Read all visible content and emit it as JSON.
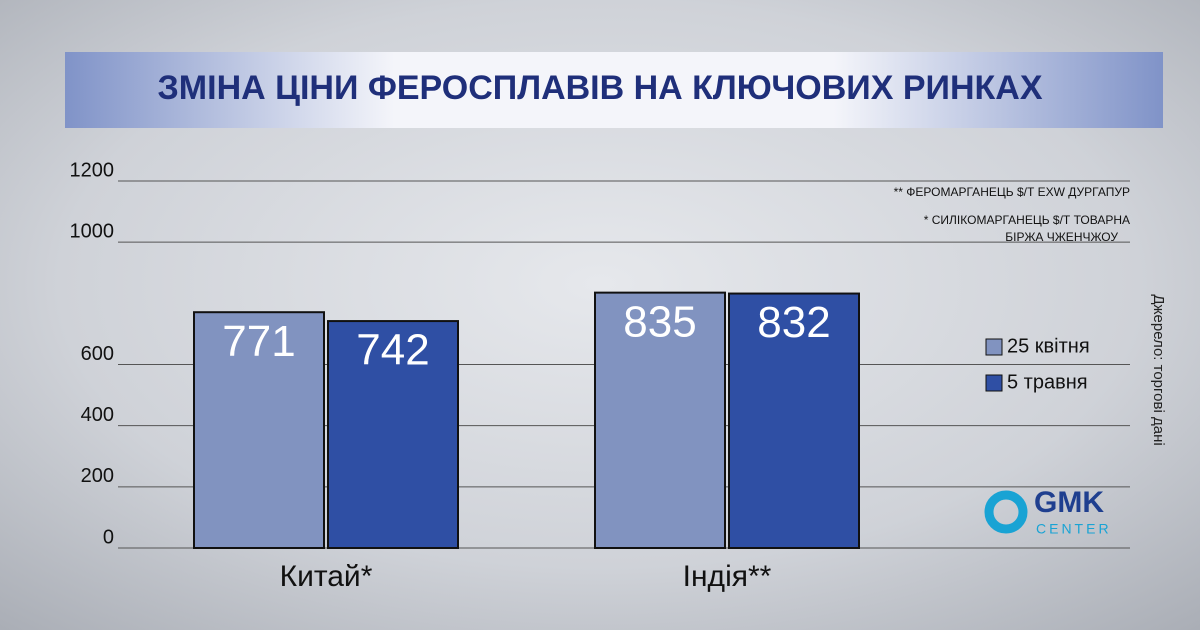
{
  "chart_data": {
    "type": "bar",
    "title": "ЗМІНА ЦІНИ ФЕРОСПЛАВІВ НА КЛЮЧОВИХ РИНКАХ",
    "categories": [
      "Китай*",
      "Індія**"
    ],
    "series": [
      {
        "name": "25 квітня",
        "color": "#8193c0",
        "values": [
          771,
          835
        ]
      },
      {
        "name": "5 травня",
        "color": "#2f4fa4",
        "values": [
          742,
          832
        ]
      }
    ],
    "ylim": [
      0,
      1200
    ],
    "yticks": [
      0,
      200,
      400,
      600,
      1000,
      1200
    ],
    "grid": true,
    "legend": "right",
    "annotations": [
      "** ФЕРОМАРГАНЕЦЬ $/Т EXW ДУРГАПУР",
      "*  СИЛІКОМАРГАНЕЦЬ $/Т ТОВАРНА",
      "БІРЖА ЧЖЕНЧЖОУ"
    ],
    "source": "Джерело: торгові дані",
    "logo": [
      "GMK",
      "CENTER"
    ]
  }
}
